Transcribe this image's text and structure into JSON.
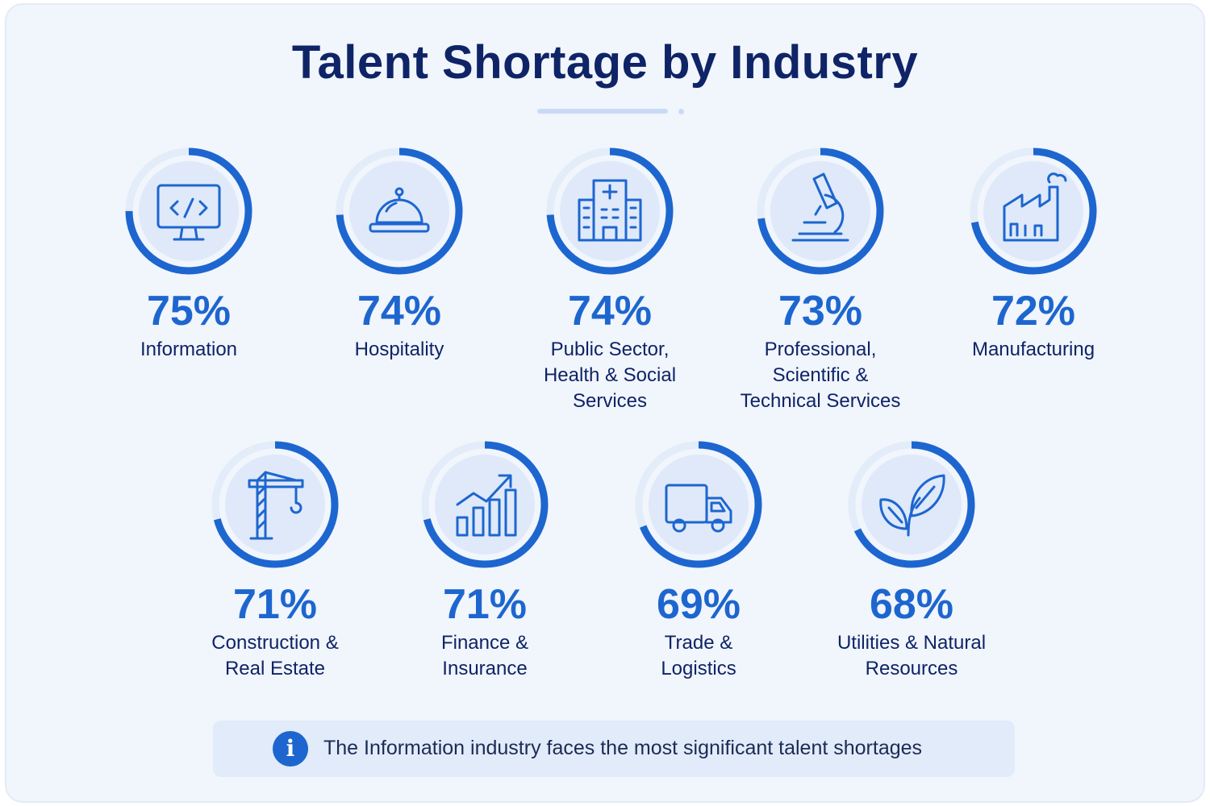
{
  "title": "Talent Shortage by Industry",
  "colors": {
    "accent": "#1d66cf",
    "track": "#e3ecf9",
    "inner": "#dfe9fa",
    "text": "#0e2466",
    "background": "#f1f5fc"
  },
  "chart_data": {
    "type": "radial-progress",
    "title": "Talent Shortage by Industry",
    "unit": "%",
    "categories": [
      "Information",
      "Hospitality",
      "Public Sector,\nHealth & Social\nServices",
      "Professional,\nScientific &\nTechnical Services",
      "Manufacturing",
      "Construction &\nReal Estate",
      "Finance &\nInsurance",
      "Trade &\nLogistics",
      "Utilities & Natural\nResources"
    ],
    "values": [
      75,
      74,
      74,
      73,
      72,
      71,
      71,
      69,
      68
    ],
    "labels": [
      "75%",
      "74%",
      "74%",
      "73%",
      "72%",
      "71%",
      "71%",
      "69%",
      "68%"
    ],
    "icons": [
      "monitor-code-icon",
      "service-bell-icon",
      "hospital-icon",
      "microscope-icon",
      "factory-icon",
      "crane-icon",
      "growth-chart-icon",
      "truck-icon",
      "leaves-icon"
    ]
  },
  "note": {
    "icon": "info-icon",
    "icon_glyph": "i",
    "text": "The Information industry faces the most significant talent shortages"
  }
}
